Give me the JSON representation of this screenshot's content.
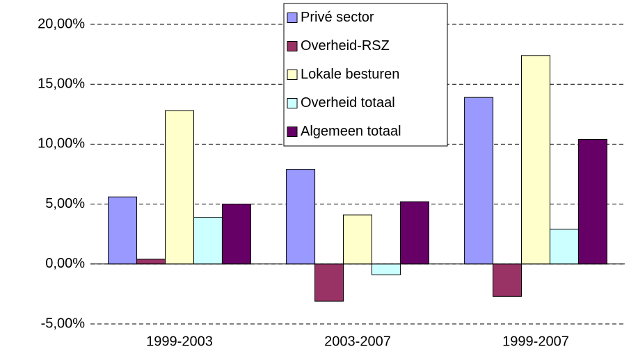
{
  "chart_data": {
    "type": "bar",
    "categories": [
      "1999-2003",
      "2003-2007",
      "1999-2007"
    ],
    "series": [
      {
        "name": "Privé sector",
        "color": "#9999ff",
        "values": [
          5.6,
          7.9,
          13.9
        ]
      },
      {
        "name": "Overheid-RSZ",
        "color": "#993366",
        "values": [
          0.4,
          -3.1,
          -2.7
        ]
      },
      {
        "name": "Lokale besturen",
        "color": "#ffffcc",
        "values": [
          12.8,
          4.1,
          17.4
        ]
      },
      {
        "name": "Overheid totaal",
        "color": "#ccffff",
        "values": [
          3.9,
          -0.9,
          2.9
        ]
      },
      {
        "name": "Algemeen totaal",
        "color": "#660066",
        "values": [
          5.0,
          5.2,
          10.4
        ]
      }
    ],
    "ylim": [
      -5,
      20
    ],
    "yticks": [
      {
        "value": -5,
        "label": "-5,00%"
      },
      {
        "value": 0,
        "label": "0,00%"
      },
      {
        "value": 5,
        "label": "5,00%"
      },
      {
        "value": 10,
        "label": "10,00%"
      },
      {
        "value": 15,
        "label": "15,00%"
      },
      {
        "value": 20,
        "label": "20,00%"
      }
    ],
    "grid": true,
    "legend": "top"
  }
}
